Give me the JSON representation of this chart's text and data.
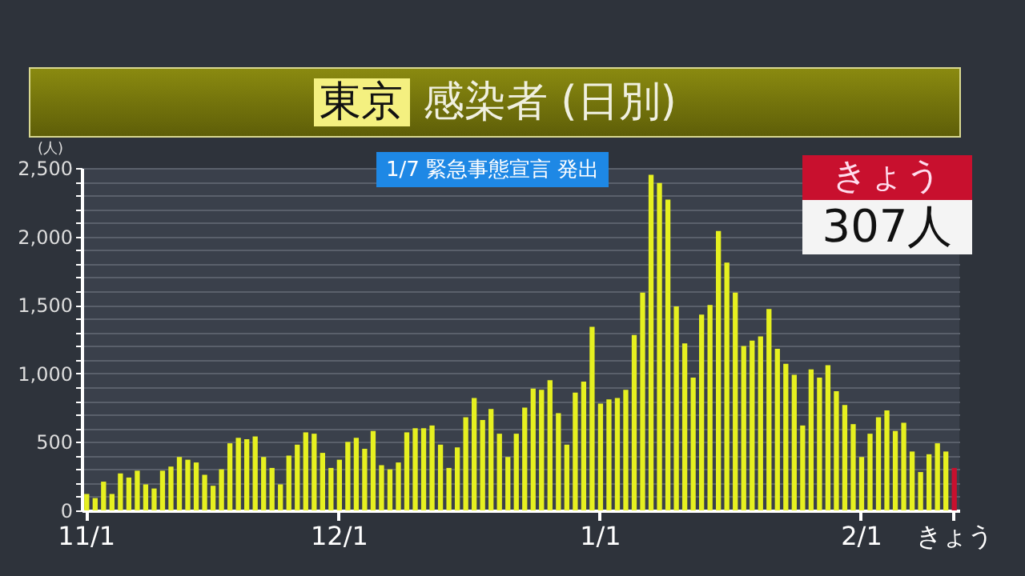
{
  "chart_data": {
    "type": "bar",
    "title": "東京 感染者 (日別)",
    "ylabel": "(人)",
    "annotations": [
      "1/7 緊急事態宣言 発出",
      "きょう",
      "307人"
    ],
    "categories": [
      "11/1",
      null,
      null,
      null,
      null,
      null,
      null,
      null,
      null,
      null,
      null,
      null,
      null,
      null,
      null,
      null,
      null,
      null,
      null,
      null,
      null,
      null,
      null,
      null,
      null,
      null,
      null,
      null,
      null,
      null,
      "12/1",
      null,
      null,
      null,
      null,
      null,
      null,
      null,
      null,
      null,
      null,
      null,
      null,
      null,
      null,
      null,
      null,
      null,
      null,
      null,
      null,
      null,
      null,
      null,
      null,
      null,
      null,
      null,
      null,
      null,
      null,
      "1/1",
      null,
      null,
      null,
      null,
      null,
      null,
      null,
      null,
      null,
      null,
      null,
      null,
      null,
      null,
      null,
      null,
      null,
      null,
      null,
      null,
      null,
      null,
      null,
      null,
      null,
      null,
      null,
      null,
      null,
      null,
      "2/1",
      null,
      null,
      null,
      null,
      null,
      null,
      null,
      null,
      null,
      null,
      "きょう"
    ],
    "values": [
      120,
      90,
      210,
      120,
      270,
      240,
      290,
      190,
      160,
      290,
      320,
      390,
      370,
      350,
      260,
      180,
      300,
      490,
      530,
      520,
      540,
      390,
      310,
      190,
      400,
      480,
      570,
      560,
      420,
      310,
      370,
      500,
      530,
      450,
      580,
      330,
      300,
      350,
      570,
      600,
      600,
      620,
      480,
      310,
      460,
      680,
      820,
      660,
      740,
      560,
      390,
      560,
      750,
      890,
      880,
      950,
      710,
      480,
      860,
      940,
      1340,
      780,
      810,
      820,
      880,
      1280,
      1590,
      2450,
      2390,
      2270,
      1490,
      1220,
      970,
      1430,
      1500,
      2040,
      1810,
      1590,
      1200,
      1240,
      1270,
      1470,
      1180,
      1070,
      990,
      620,
      1030,
      970,
      1060,
      870,
      770,
      630,
      390,
      560,
      680,
      730,
      580,
      640,
      430,
      280,
      410,
      490,
      430,
      310
    ],
    "colors": [
      "#e6f020",
      null,
      null,
      null,
      null,
      null,
      null,
      null,
      null,
      null,
      null,
      null,
      null,
      null,
      null,
      null,
      null,
      null,
      null,
      null,
      null,
      null,
      null,
      null,
      null,
      null,
      null,
      null,
      null,
      null,
      null,
      null,
      null,
      null,
      null,
      null,
      null,
      null,
      null,
      null,
      null,
      null,
      null,
      null,
      null,
      null,
      null,
      null,
      null,
      null,
      null,
      null,
      null,
      null,
      null,
      null,
      null,
      null,
      null,
      null,
      null,
      null,
      null,
      null,
      null,
      null,
      null,
      null,
      null,
      null,
      null,
      null,
      null,
      null,
      null,
      null,
      null,
      null,
      null,
      null,
      null,
      null,
      null,
      null,
      null,
      null,
      null,
      null,
      null,
      null,
      null,
      null,
      null,
      null,
      null,
      null,
      null,
      null,
      null,
      null,
      null,
      null,
      null,
      "#c8102e"
    ],
    "ylim": [
      0,
      2500
    ],
    "yticks": [
      {
        "value": 0,
        "label": "0"
      },
      {
        "value": 100,
        "label": null
      },
      {
        "value": 200,
        "label": null
      },
      {
        "value": 300,
        "label": null
      },
      {
        "value": 400,
        "label": null
      },
      {
        "value": 500,
        "label": "500"
      },
      {
        "value": 600,
        "label": null
      },
      {
        "value": 700,
        "label": null
      },
      {
        "value": 800,
        "label": null
      },
      {
        "value": 900,
        "label": null
      },
      {
        "value": 1000,
        "label": "1,000"
      },
      {
        "value": 1100,
        "label": null
      },
      {
        "value": 1200,
        "label": null
      },
      {
        "value": 1300,
        "label": null
      },
      {
        "value": 1400,
        "label": null
      },
      {
        "value": 1500,
        "label": "1,500"
      },
      {
        "value": 1600,
        "label": null
      },
      {
        "value": 1700,
        "label": null
      },
      {
        "value": 1800,
        "label": null
      },
      {
        "value": 1900,
        "label": null
      },
      {
        "value": 2000,
        "label": "2,000"
      },
      {
        "value": 2100,
        "label": null
      },
      {
        "value": 2200,
        "label": null
      },
      {
        "value": 2300,
        "label": null
      },
      {
        "value": 2400,
        "label": null
      },
      {
        "value": 2500,
        "label": "2,500"
      }
    ],
    "grid": true
  }
}
